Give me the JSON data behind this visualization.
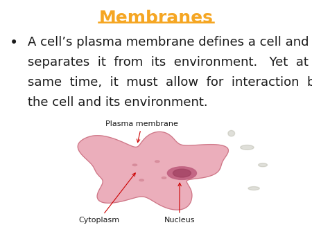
{
  "title": "Membranes",
  "title_color": "#F5A623",
  "title_fontsize": 18,
  "bullet_fontsize": 13,
  "bullet_color": "#1a1a1a",
  "background_color": "#ffffff",
  "image_label1": "Plasma membrane",
  "image_label2": "Cytoplasm",
  "image_label3": "Nucleus",
  "label_color": "#1a1a1a",
  "arrow_color": "#cc0000",
  "label_fontsize": 8,
  "lines": [
    "A cell’s plasma membrane defines a cell and",
    "separates  it  from  its  environment.   Yet  at  the",
    "same  time,  it  must  allow  for  interaction  between",
    "the cell and its environment."
  ],
  "cell_color": "#e8a0b0",
  "cell_border_color": "#c06070",
  "nucleus_color": "#c06080",
  "nucleus_inner_color": "#a04060",
  "bg_image_color": "#d8d5cc"
}
